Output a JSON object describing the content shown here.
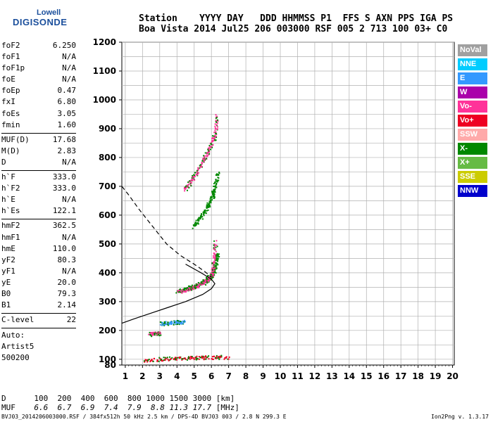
{
  "logo": {
    "line1": "Lowell",
    "line2": "DIGISONDE"
  },
  "header": {
    "labels": "Station    YYYY DAY   DDD HHMMSS P1  FFS S AXN PPS IGA PS",
    "values": "Boa Vista 2014 Jul25 206 003000 RSF 005 2 713 100 03+ C0"
  },
  "params": [
    {
      "name": "foF2",
      "value": "6.250"
    },
    {
      "name": "foF1",
      "value": "N/A"
    },
    {
      "name": "foF1p",
      "value": "N/A"
    },
    {
      "name": "foE",
      "value": "N/A"
    },
    {
      "name": "foEp",
      "value": "0.47"
    },
    {
      "name": "fxI",
      "value": "6.80"
    },
    {
      "name": "foEs",
      "value": "3.05"
    },
    {
      "name": "fmin",
      "value": "1.60"
    },
    {
      "name": "MUF(D)",
      "value": "17.68"
    },
    {
      "name": "M(D)",
      "value": "2.83"
    },
    {
      "name": "D",
      "value": "N/A"
    },
    {
      "name": "h`F",
      "value": "333.0"
    },
    {
      "name": "h`F2",
      "value": "333.0"
    },
    {
      "name": "h`E",
      "value": "N/A"
    },
    {
      "name": "h`Es",
      "value": "122.1"
    },
    {
      "name": "hmF2",
      "value": "362.5"
    },
    {
      "name": "hmF1",
      "value": "N/A"
    },
    {
      "name": "hmE",
      "value": "110.0"
    },
    {
      "name": "yF2",
      "value": "80.3"
    },
    {
      "name": "yF1",
      "value": "N/A"
    },
    {
      "name": "yE",
      "value": "20.0"
    },
    {
      "name": "B0",
      "value": "79.3"
    },
    {
      "name": "B1",
      "value": "2.14"
    },
    {
      "name": "C-level",
      "value": "22"
    }
  ],
  "auto": {
    "label": "Auto:",
    "artist": "Artist5",
    "code": "500200"
  },
  "legend": [
    {
      "label": "NoVal",
      "color": "#a0a0a0"
    },
    {
      "label": "NNE",
      "color": "#00ccff"
    },
    {
      "label": "E",
      "color": "#3399ff"
    },
    {
      "label": "W",
      "color": "#aa00aa"
    },
    {
      "label": "Vo-",
      "color": "#ff3399"
    },
    {
      "label": "Vo+",
      "color": "#ee0022"
    },
    {
      "label": "SSW",
      "color": "#ffaaaa"
    },
    {
      "label": "X-",
      "color": "#008800"
    },
    {
      "label": "X+",
      "color": "#66bb44"
    },
    {
      "label": "SSE",
      "color": "#cccc00"
    },
    {
      "label": "NNW",
      "color": "#0000cc"
    }
  ],
  "chart_data": {
    "type": "scatter",
    "xlabel": "",
    "ylabel": "",
    "x_ticks": [
      1,
      2,
      3,
      4,
      5,
      6,
      7,
      8,
      9,
      10,
      11,
      12,
      13,
      14,
      15,
      16,
      17,
      18,
      19,
      20
    ],
    "y_ticks": [
      80,
      100,
      200,
      300,
      400,
      500,
      600,
      700,
      800,
      900,
      1000,
      1100,
      1200
    ],
    "xlim": [
      0.8,
      20.1
    ],
    "ylim": [
      80,
      1200
    ],
    "grid": true,
    "series": [
      {
        "name": "X-",
        "kind": "trace",
        "points": [
          [
            4.0,
            338
          ],
          [
            4.5,
            345
          ],
          [
            5.0,
            355
          ],
          [
            5.5,
            370
          ],
          [
            5.9,
            385
          ],
          [
            6.1,
            400
          ],
          [
            6.25,
            430
          ],
          [
            6.3,
            470
          ]
        ]
      },
      {
        "name": "Vo-",
        "kind": "trace",
        "points": [
          [
            4.0,
            335
          ],
          [
            4.5,
            342
          ],
          [
            5.0,
            352
          ],
          [
            5.5,
            366
          ],
          [
            5.8,
            380
          ],
          [
            6.0,
            395
          ],
          [
            6.1,
            420
          ],
          [
            6.15,
            460
          ],
          [
            6.2,
            510
          ]
        ]
      },
      {
        "name": "X-",
        "kind": "trace",
        "points": [
          [
            4.9,
            560
          ],
          [
            5.3,
            590
          ],
          [
            5.7,
            625
          ],
          [
            6.0,
            660
          ],
          [
            6.2,
            700
          ],
          [
            6.35,
            750
          ]
        ]
      },
      {
        "name": "Vo-",
        "kind": "trace",
        "points": [
          [
            4.4,
            690
          ],
          [
            4.8,
            720
          ],
          [
            5.2,
            755
          ],
          [
            5.6,
            800
          ],
          [
            5.9,
            840
          ],
          [
            6.2,
            880
          ],
          [
            6.3,
            950
          ]
        ]
      },
      {
        "name": "Vo+",
        "kind": "trace",
        "points": [
          [
            2.0,
            97
          ],
          [
            3.0,
            102
          ],
          [
            4.0,
            105
          ],
          [
            5.0,
            107
          ],
          [
            6.0,
            108
          ],
          [
            7.0,
            108
          ]
        ]
      },
      {
        "name": "Vo-",
        "kind": "trace",
        "points": [
          [
            2.4,
            189
          ],
          [
            2.7,
            190
          ],
          [
            3.0,
            192
          ]
        ]
      },
      {
        "name": "E",
        "kind": "trace",
        "points": [
          [
            3.0,
            226
          ],
          [
            3.5,
            228
          ],
          [
            4.0,
            230
          ],
          [
            4.4,
            231
          ]
        ]
      },
      {
        "name": "profile",
        "kind": "line",
        "points": [
          [
            0.8,
            225
          ],
          [
            1.5,
            240
          ],
          [
            2.5,
            260
          ],
          [
            3.5,
            280
          ],
          [
            4.5,
            300
          ],
          [
            5.5,
            325
          ],
          [
            6.0,
            345
          ],
          [
            6.2,
            362
          ],
          [
            6.0,
            378
          ],
          [
            5.4,
            400
          ],
          [
            4.5,
            430
          ]
        ]
      },
      {
        "name": "profile-dashed",
        "kind": "dashed",
        "points": [
          [
            0.8,
            700
          ],
          [
            1.2,
            670
          ],
          [
            1.8,
            620
          ],
          [
            2.6,
            560
          ],
          [
            3.4,
            500
          ],
          [
            4.2,
            460
          ],
          [
            5.0,
            430
          ],
          [
            5.6,
            405
          ],
          [
            6.0,
            385
          ]
        ]
      }
    ]
  },
  "bottom": {
    "d_label": "D",
    "d_values": [
      "100",
      "200",
      "400",
      "600",
      "800",
      "1000",
      "1500",
      "3000"
    ],
    "d_unit": "[km]",
    "muf_label": "MUF",
    "muf_values": [
      "6.6",
      "6.7",
      "6.9",
      "7.4",
      "7.9",
      "8.8",
      "11.3",
      "17.7"
    ],
    "muf_unit": "[MHz]"
  },
  "footer": "BVJ03_2014206003000.RSF / 384fx512h 50 kHz 2.5 km / DPS-4D BVJ03 003 / 2.8 N 299.3 E",
  "version": "Ion2Png v. 1.3.17"
}
